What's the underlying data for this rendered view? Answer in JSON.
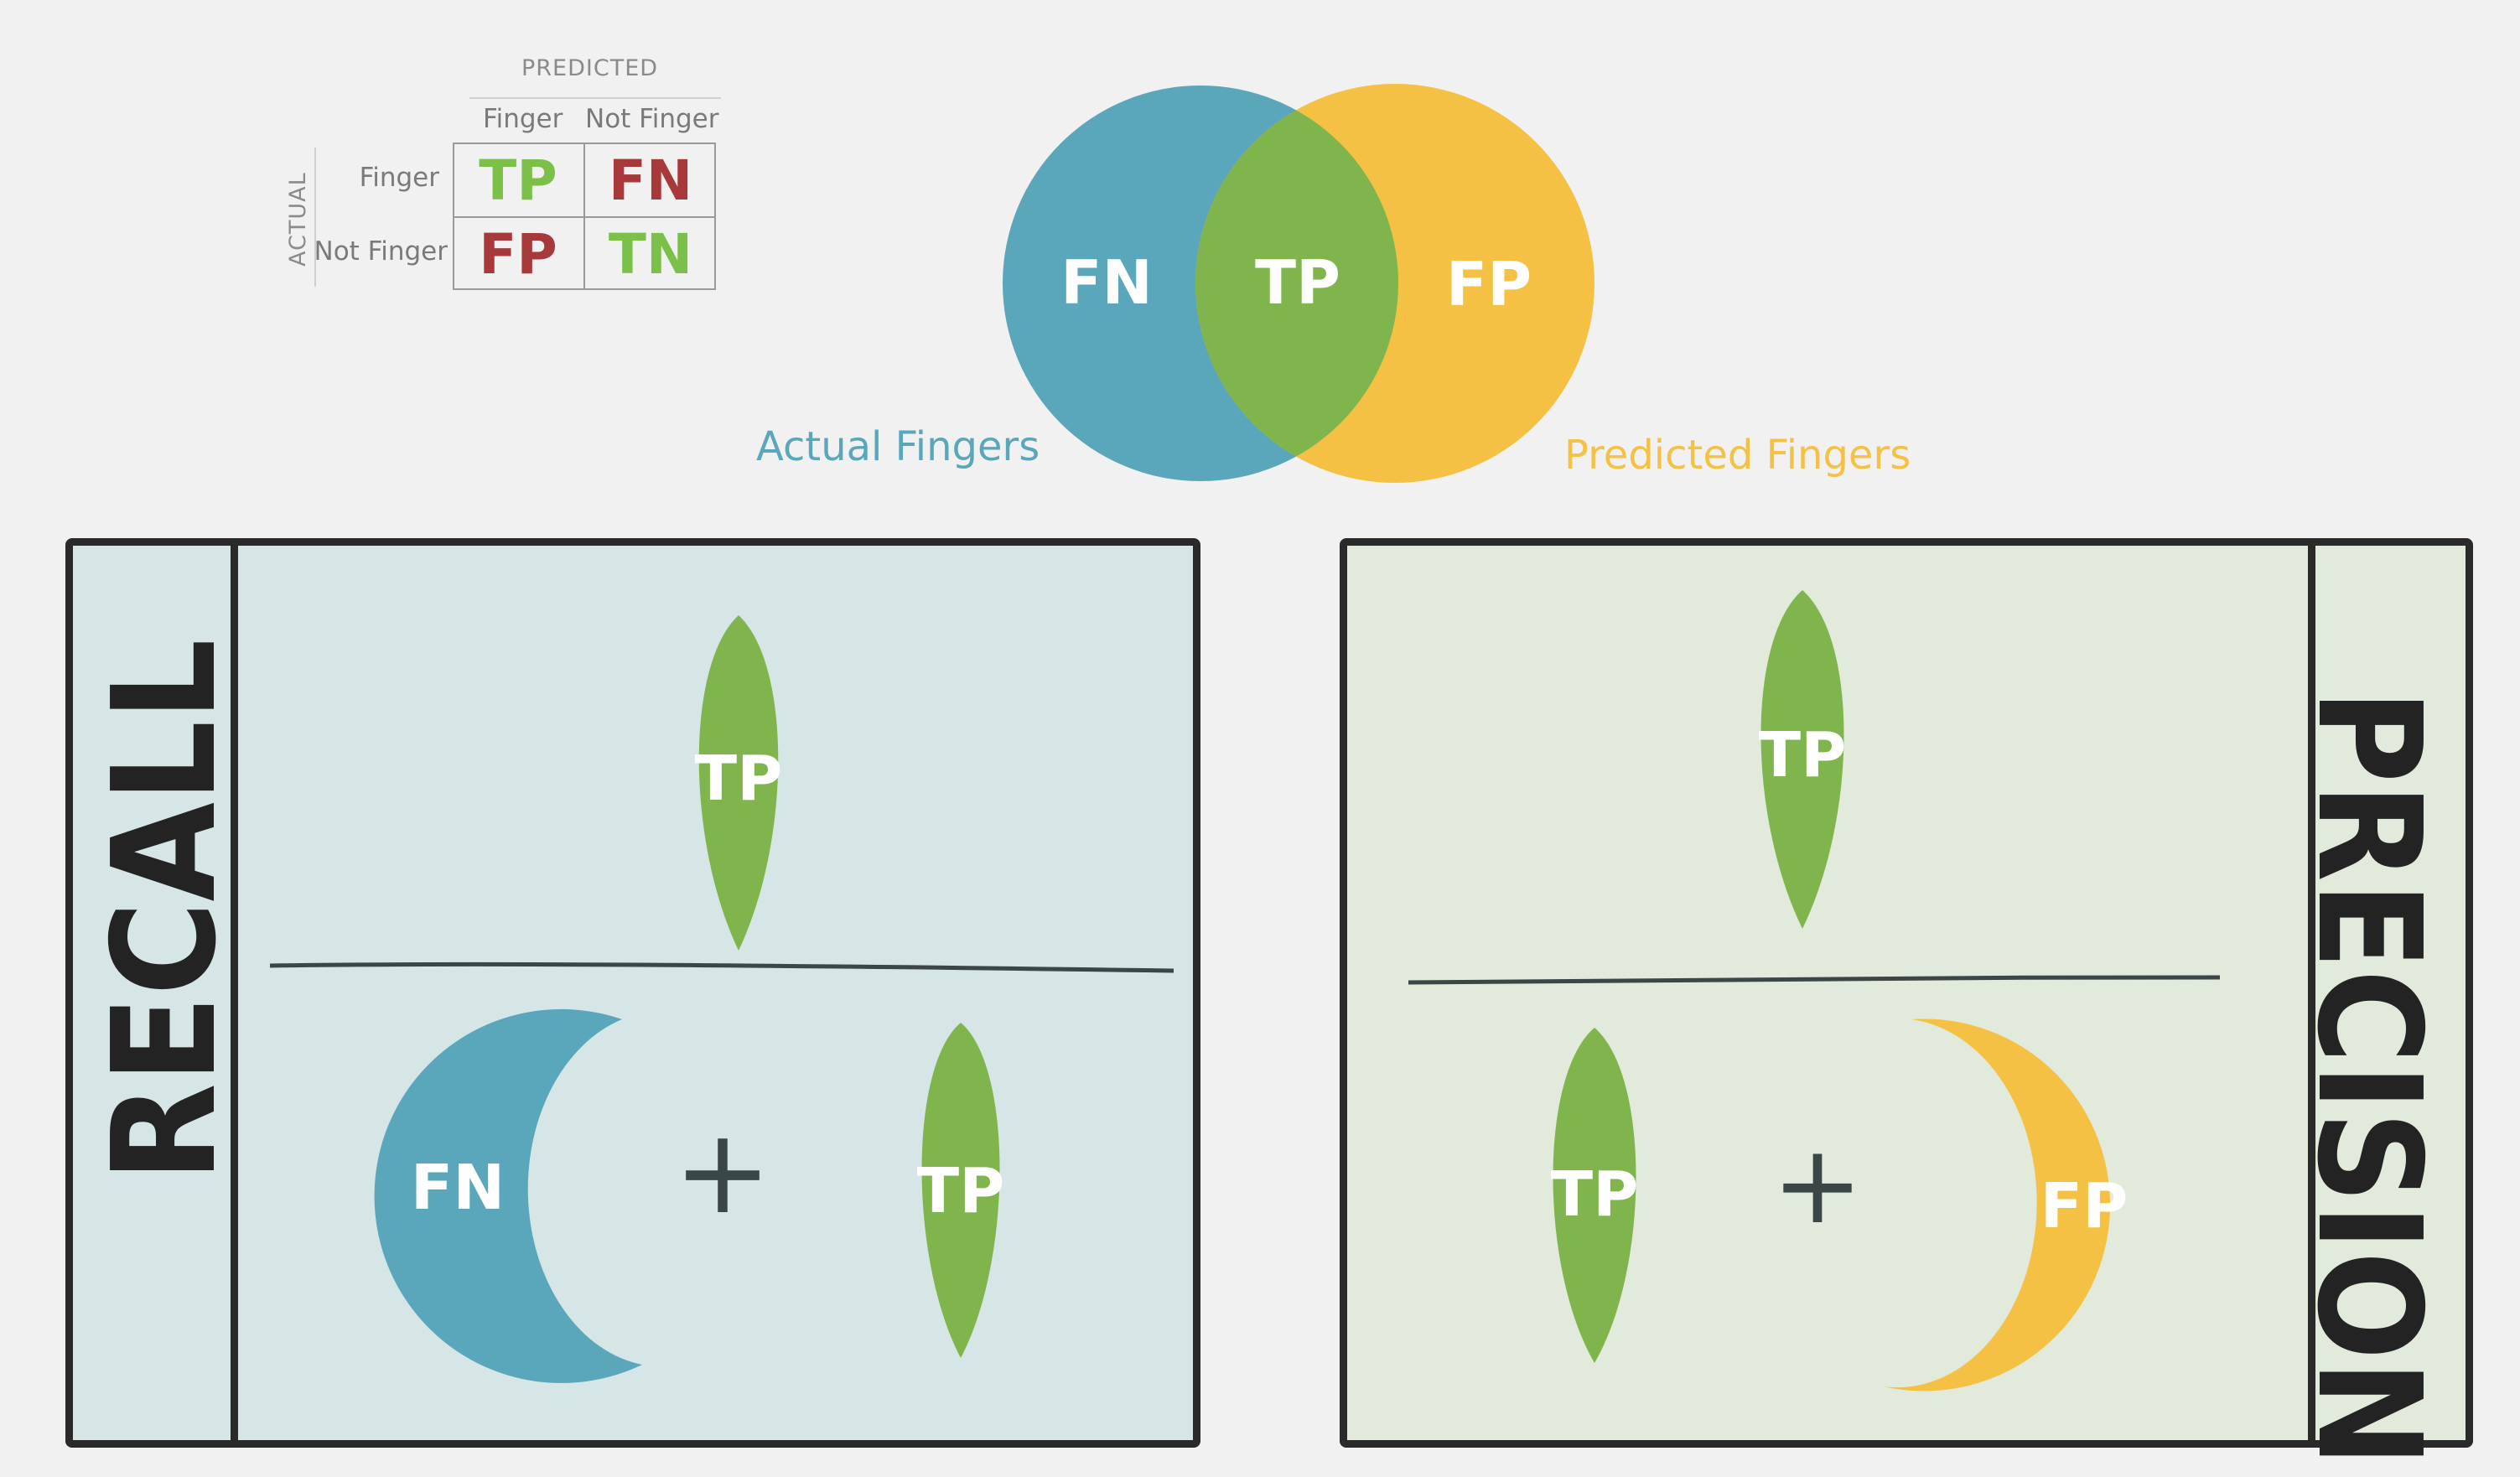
{
  "confusion_matrix": {
    "predicted_header": "PREDICTED",
    "actual_header": "ACTUAL",
    "col_labels": [
      "Finger",
      "Not Finger"
    ],
    "row_labels": [
      "Finger",
      "Not Finger"
    ],
    "cells": [
      [
        "TP",
        "FN"
      ],
      [
        "FP",
        "TN"
      ]
    ],
    "colors": {
      "green": "#7cc04a",
      "red": "#a8393a"
    }
  },
  "venn": {
    "left_region": "FN",
    "center_region": "TP",
    "right_region": "FP",
    "left_caption": "Actual Fingers",
    "right_caption": "Predicted Fingers",
    "colors": {
      "blue": "#5aa6bb",
      "green": "#7fb54c",
      "yellow": "#f4c144"
    }
  },
  "recall": {
    "title": "RECALL",
    "numerator": "TP",
    "denominator_left": "FN",
    "operator": "+",
    "denominator_right": "TP",
    "background": "#d6e6e6"
  },
  "precision": {
    "title": "PRECISION",
    "numerator": "TP",
    "denominator_left": "TP",
    "operator": "+",
    "denominator_right": "FP",
    "background": "#e1eadb"
  }
}
